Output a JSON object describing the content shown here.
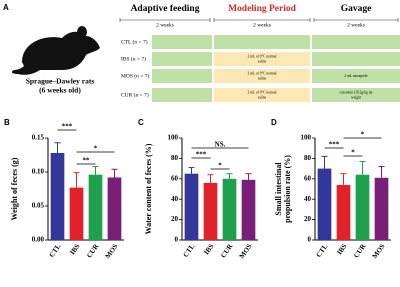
{
  "panel_a": {
    "letter": "A",
    "subject": [
      "Sprague–Dawley rats",
      "(6 weeks old)"
    ],
    "columns": [
      {
        "title": "Adaptive feeding",
        "duration": "2 weeks"
      },
      {
        "title": "Modeling Period",
        "duration": "2 weeks"
      },
      {
        "title": "Gavage",
        "duration": "2 weeks"
      }
    ],
    "rows": [
      {
        "group": "CTL (n = 7)",
        "modeling": null,
        "gavage": null
      },
      {
        "group": "IBS (n = 7)",
        "modeling": [
          "2 mL of 0°C normal",
          "saline"
        ],
        "gavage": null
      },
      {
        "group": "MOS (n = 7)",
        "modeling": [
          "2 mL of 0°C normal",
          "saline"
        ],
        "gavage": [
          "2 mL mosapride"
        ]
      },
      {
        "group": "CUR (n = 7)",
        "modeling": [
          "2 mL of 0°C normal",
          "saline"
        ],
        "gavage": [
          "curcumin (19.2g/kg rat",
          "weight"
        ]
      }
    ]
  },
  "chart_data": [
    {
      "type": "bar",
      "letter": "B",
      "y_label": "Weight of feces (g)",
      "categories": [
        "CTL",
        "IBS",
        "CUR",
        "MOS"
      ],
      "values": [
        0.128,
        0.077,
        0.096,
        0.092
      ],
      "errors": [
        0.015,
        0.022,
        0.012,
        0.012
      ],
      "colors": [
        "#34379a",
        "#e0232b",
        "#1fa04c",
        "#7a1f78"
      ],
      "ylim": [
        0,
        0.15
      ],
      "yticks": [
        {
          "value": 0,
          "label": "0.00"
        },
        0.05,
        {
          "value": 0.1,
          "label": "0.10"
        },
        0.15
      ],
      "annotations": [
        "***",
        "*",
        "**"
      ]
    },
    {
      "type": "bar",
      "letter": "C",
      "y_label": "Water content of feces (%)",
      "categories": [
        "CTL",
        "IBS",
        "CUR",
        "MOS"
      ],
      "values": [
        65,
        56,
        60,
        59
      ],
      "errors": [
        6,
        8,
        5,
        6
      ],
      "colors": [
        "#34379a",
        "#e0232b",
        "#1fa04c",
        "#7a1f78"
      ],
      "ylim": [
        0,
        100
      ],
      "yticks": [
        0,
        20,
        40,
        60,
        80,
        100
      ],
      "annotations": [
        "***",
        "NS.",
        "*"
      ]
    },
    {
      "type": "bar",
      "letter": "D",
      "y_label": [
        "Small intestinal",
        "propulsion rate (%)"
      ],
      "categories": [
        "CTL",
        "IBS",
        "CUR",
        "MOS"
      ],
      "values": [
        70,
        54,
        64,
        61
      ],
      "errors": [
        12,
        11,
        13,
        11
      ],
      "colors": [
        "#34379a",
        "#e0232b",
        "#1fa04c",
        "#7a1f78"
      ],
      "ylim": [
        0,
        100
      ],
      "yticks": [
        0,
        20,
        40,
        60,
        80,
        100
      ],
      "annotations": [
        "***",
        "*",
        "*"
      ]
    }
  ]
}
